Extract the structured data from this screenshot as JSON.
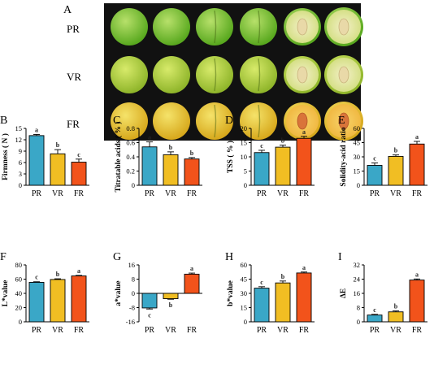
{
  "photo_panel": {
    "letter": "A",
    "rows": [
      "PR",
      "VR",
      "FR"
    ]
  },
  "chart_data": [
    {
      "letter": "B",
      "type": "bar",
      "ylabel": "Firmness ( N )",
      "categories": [
        "PR",
        "VR",
        "FR"
      ],
      "values": [
        13.1,
        8.3,
        6.1
      ],
      "errors": [
        0.3,
        1.1,
        0.8
      ],
      "sig": [
        "a",
        "b",
        "c"
      ],
      "ylim": [
        0,
        15
      ],
      "yticks": [
        0,
        3,
        6,
        9,
        12,
        15
      ]
    },
    {
      "letter": "C",
      "type": "bar",
      "ylabel": "Titratable acids ( % )",
      "categories": [
        "PR",
        "VR",
        "FR"
      ],
      "values": [
        0.54,
        0.43,
        0.37
      ],
      "errors": [
        0.07,
        0.04,
        0.02
      ],
      "sig": [
        "a",
        "b",
        "b"
      ],
      "ylim": [
        0,
        0.8
      ],
      "yticks": [
        0,
        0.2,
        0.4,
        0.6,
        0.8
      ]
    },
    {
      "letter": "D",
      "type": "bar",
      "ylabel": "TSS ( % )",
      "categories": [
        "PR",
        "VR",
        "FR"
      ],
      "values": [
        11.5,
        13.4,
        16.5
      ],
      "errors": [
        0.8,
        0.7,
        0.7
      ],
      "sig": [
        "c",
        "b",
        "a"
      ],
      "ylim": [
        0,
        20
      ],
      "yticks": [
        0,
        5,
        10,
        15,
        20
      ]
    },
    {
      "letter": "E",
      "type": "bar",
      "ylabel": "Solidity-acid ratio",
      "categories": [
        "PR",
        "VR",
        "FR"
      ],
      "values": [
        21.0,
        30.5,
        43.5
      ],
      "errors": [
        2.5,
        1.5,
        2.8
      ],
      "sig": [
        "c",
        "b",
        "a"
      ],
      "ylim": [
        0,
        60
      ],
      "yticks": [
        0,
        15,
        30,
        45,
        60
      ]
    },
    {
      "letter": "F",
      "type": "bar",
      "ylabel": "L*value",
      "categories": [
        "PR",
        "VR",
        "FR"
      ],
      "values": [
        55.5,
        59.5,
        64.5
      ],
      "errors": [
        0.8,
        1.0,
        0.8
      ],
      "sig": [
        "c",
        "b",
        "a"
      ],
      "ylim": [
        0,
        80
      ],
      "yticks": [
        0,
        20,
        40,
        60,
        80
      ]
    },
    {
      "letter": "G",
      "type": "bar",
      "ylabel": "a*value",
      "categories": [
        "PR",
        "VR",
        "FR"
      ],
      "values": [
        -8.2,
        -3.0,
        10.8
      ],
      "errors": [
        0.6,
        0.3,
        0.6
      ],
      "sig": [
        "c",
        "b",
        "a"
      ],
      "ylim": [
        -16,
        16
      ],
      "yticks": [
        -16,
        -8,
        0,
        8,
        16
      ]
    },
    {
      "letter": "H",
      "type": "bar",
      "ylabel": "b*value",
      "categories": [
        "PR",
        "VR",
        "FR"
      ],
      "values": [
        35.5,
        41.0,
        51.5
      ],
      "errors": [
        1.5,
        2.0,
        1.0
      ],
      "sig": [
        "c",
        "b",
        "a"
      ],
      "ylim": [
        0,
        60
      ],
      "yticks": [
        0,
        15,
        30,
        45,
        60
      ]
    },
    {
      "letter": "I",
      "type": "bar",
      "ylabel": "ΔE",
      "categories": [
        "PR",
        "VR",
        "FR"
      ],
      "values": [
        3.8,
        5.6,
        23.5
      ],
      "errors": [
        0.4,
        0.5,
        0.6
      ],
      "sig": [
        "c",
        "b",
        "a"
      ],
      "ylim": [
        0,
        32
      ],
      "yticks": [
        0,
        8,
        16,
        24,
        32
      ]
    }
  ],
  "colors": {
    "bars": [
      "#3aa7c7",
      "#f1be23",
      "#f2531b"
    ],
    "sig_letter": "#1a8a3a",
    "photo_background": "#111111"
  }
}
